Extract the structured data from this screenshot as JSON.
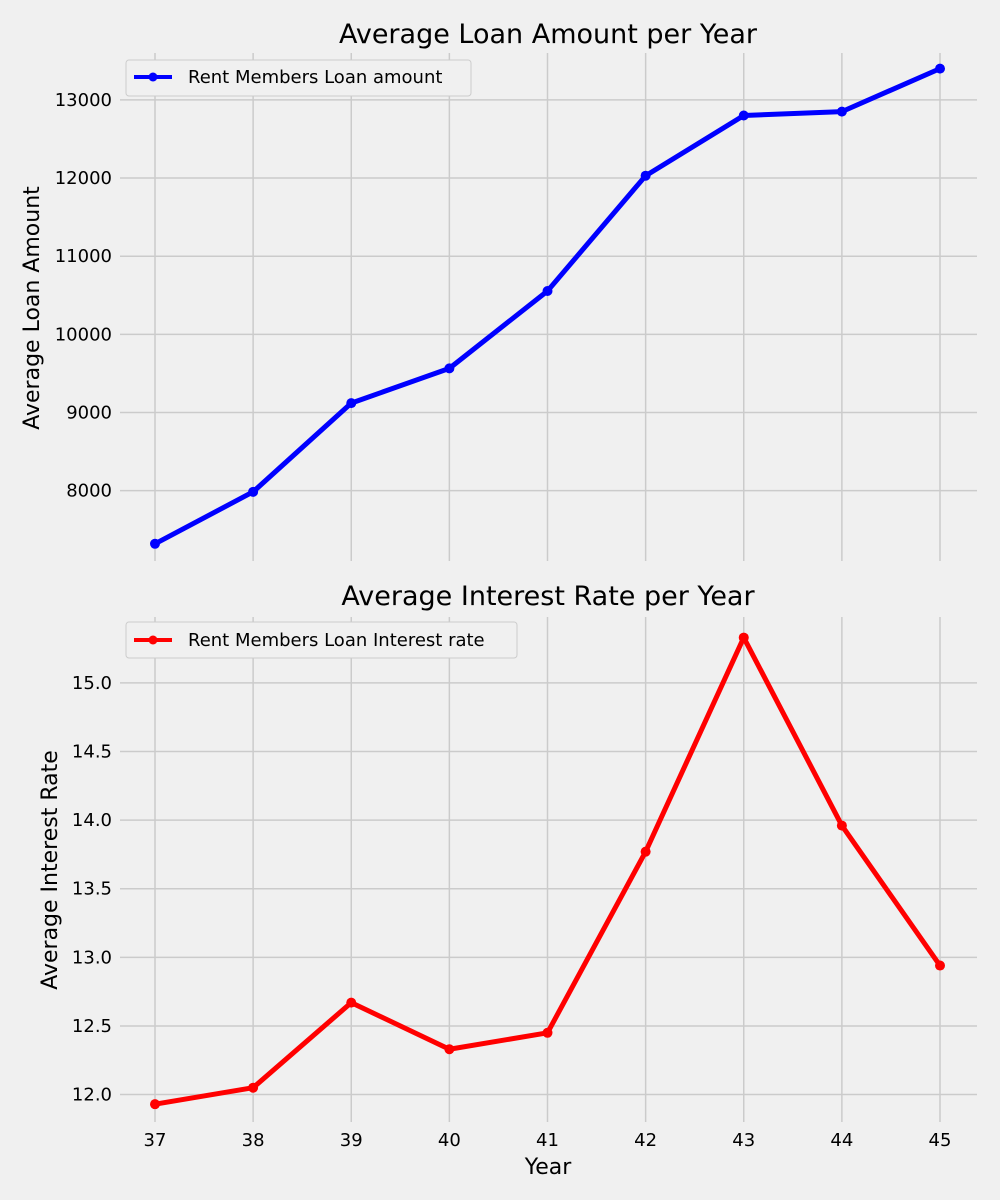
{
  "chart_data": [
    {
      "type": "line",
      "title": "Average Loan Amount per Year",
      "xlabel": "",
      "ylabel": "Average Loan Amount",
      "x": [
        37,
        38,
        39,
        40,
        41,
        42,
        43,
        44,
        45
      ],
      "x_ticks": [
        "37",
        "38",
        "39",
        "40",
        "41",
        "42",
        "43",
        "44",
        "45"
      ],
      "show_x_tick_labels": false,
      "ylim": [
        7100,
        13600
      ],
      "y_ticks": [
        8000,
        9000,
        10000,
        11000,
        12000,
        13000
      ],
      "y_tick_labels": [
        "8000",
        "9000",
        "10000",
        "11000",
        "12000",
        "13000"
      ],
      "series": [
        {
          "name": "Rent Members Loan amount",
          "color": "#0000ff",
          "values": [
            7320,
            7985,
            9120,
            9565,
            10555,
            12030,
            12800,
            12850,
            13400
          ]
        }
      ],
      "grid": true,
      "legend": "top-left",
      "marker": "circle"
    },
    {
      "type": "line",
      "title": "Average Interest Rate per Year",
      "xlabel": "Year",
      "ylabel": "Average Interest Rate",
      "x": [
        37,
        38,
        39,
        40,
        41,
        42,
        43,
        44,
        45
      ],
      "x_ticks": [
        "37",
        "38",
        "39",
        "40",
        "41",
        "42",
        "43",
        "44",
        "45"
      ],
      "show_x_tick_labels": true,
      "ylim": [
        11.8,
        15.48
      ],
      "y_ticks": [
        12.0,
        12.5,
        13.0,
        13.5,
        14.0,
        14.5,
        15.0
      ],
      "y_tick_labels": [
        "12.0",
        "12.5",
        "13.0",
        "13.5",
        "14.0",
        "14.5",
        "15.0"
      ],
      "series": [
        {
          "name": "Rent Members Loan Interest rate",
          "color": "#ff0000",
          "values": [
            11.93,
            12.05,
            12.67,
            12.33,
            12.45,
            13.77,
            15.33,
            13.96,
            12.94
          ]
        }
      ],
      "grid": true,
      "legend": "top-left",
      "marker": "circle"
    }
  ]
}
